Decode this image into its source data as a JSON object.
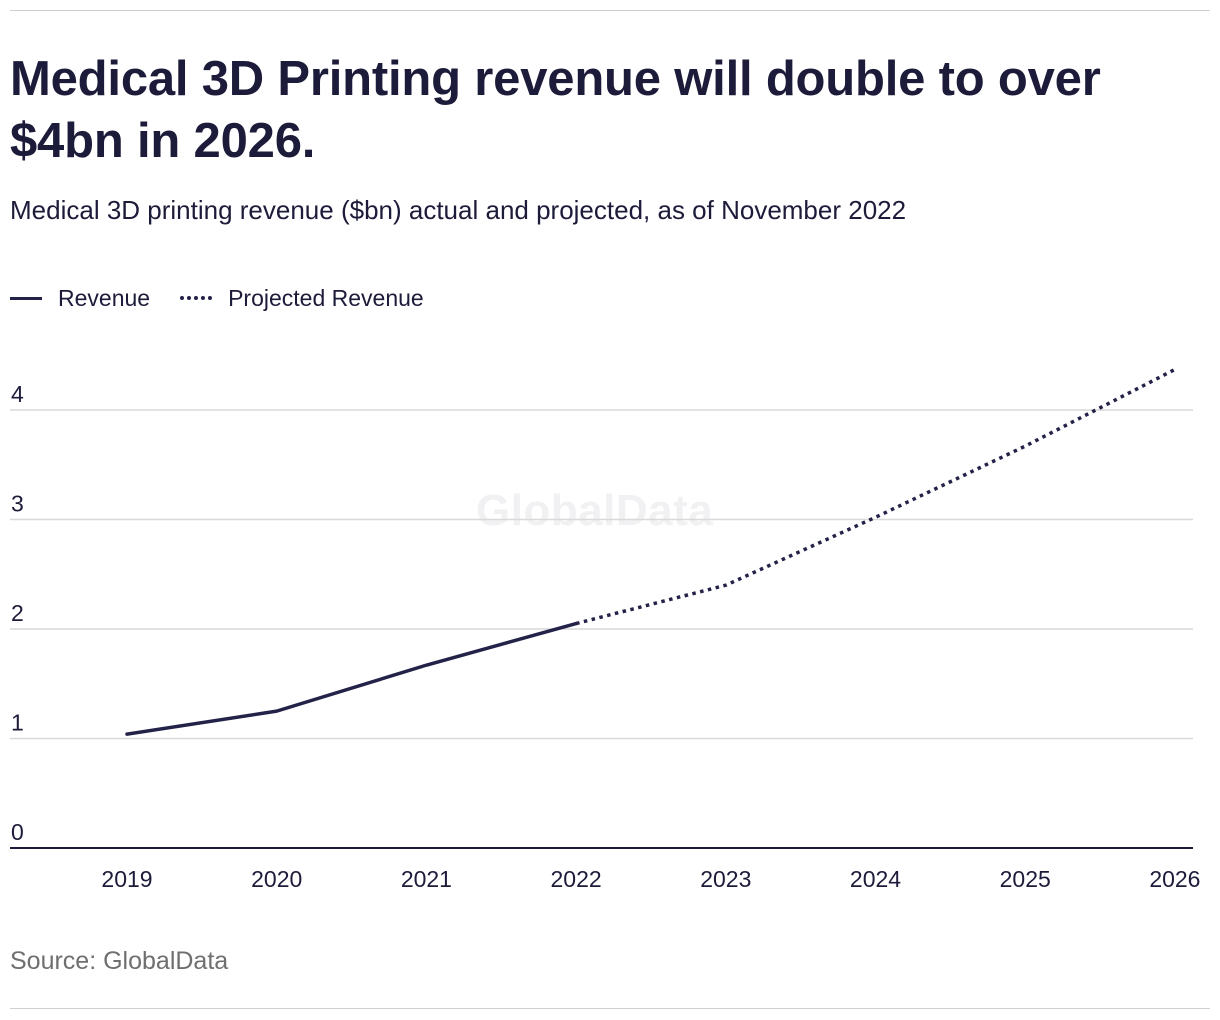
{
  "header": {
    "title": "Medical 3D Printing revenue will double to over $4bn in 2026.",
    "subtitle": "Medical 3D printing revenue ($bn) actual and projected, as of November 2022"
  },
  "legend": {
    "items": [
      {
        "label": "Revenue",
        "style": "solid"
      },
      {
        "label": "Projected Revenue",
        "style": "dotted"
      }
    ],
    "placement": "top-left"
  },
  "watermark": "GlobalData",
  "footer": {
    "source": "Source: GlobalData"
  },
  "colors": {
    "series": "#232248",
    "gridline": "#d9d9d9",
    "axis": "#1d1b3a",
    "source_text": "#6f6f6f"
  },
  "chart_data": {
    "type": "line",
    "title": "Medical 3D Printing revenue will double to over $4bn in 2026.",
    "subtitle": "Medical 3D printing revenue ($bn) actual and projected, as of November 2022",
    "xlabel": "",
    "ylabel": "",
    "categories": [
      "2019",
      "2020",
      "2021",
      "2022",
      "2023",
      "2024",
      "2025",
      "2026"
    ],
    "ylim": [
      0,
      4.4
    ],
    "yticks": [
      0,
      1,
      2,
      3,
      4
    ],
    "grid": true,
    "legend_placement": "top-left",
    "series": [
      {
        "name": "Revenue",
        "style": "solid",
        "x": [
          "2019",
          "2020",
          "2021",
          "2022"
        ],
        "values": [
          1.04,
          1.25,
          1.67,
          2.05
        ]
      },
      {
        "name": "Projected Revenue",
        "style": "dotted",
        "x": [
          "2022",
          "2023",
          "2024",
          "2025",
          "2026"
        ],
        "values": [
          2.05,
          2.4,
          3.02,
          3.67,
          4.37
        ]
      }
    ]
  }
}
